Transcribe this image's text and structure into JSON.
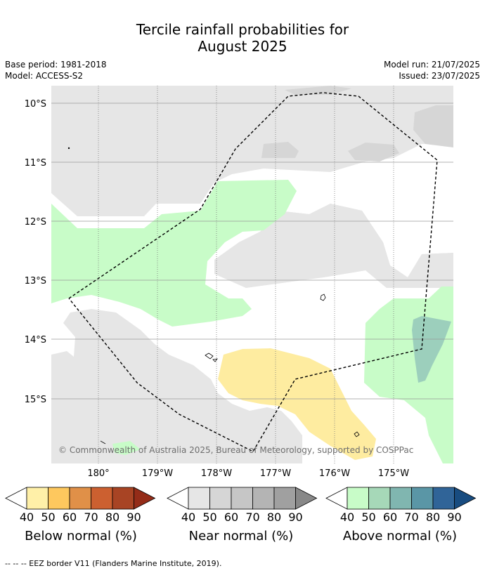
{
  "title_line1": "Tercile rainfall probabilities for",
  "title_line2": "August 2025",
  "meta": {
    "base_period": "Base period: 1981-2018",
    "model": "Model: ACCESS-S2",
    "model_run": "Model run: 21/07/2025",
    "issued": "Issued: 23/07/2025"
  },
  "map": {
    "lat_labels": [
      "10°S",
      "11°S",
      "12°S",
      "13°S",
      "14°S",
      "15°S"
    ],
    "lon_labels": [
      "180°",
      "179°W",
      "178°W",
      "177°W",
      "176°W",
      "175°W"
    ],
    "copyright": "© Commonwealth of Australia 2025, Bureau of Meteorology, supported by COSPPac",
    "colors": {
      "near_normal_40": "#e6e6e6",
      "near_normal_50": "#d6d6d6",
      "above_normal_40": "#c8fcc8",
      "above_normal_60": "#9ccfbc",
      "below_normal_40": "#feeca0"
    }
  },
  "colorbars": [
    {
      "label": "Below normal (%)",
      "ticks": [
        "40",
        "50",
        "60",
        "70",
        "80",
        "90"
      ],
      "colors": [
        "#fff0a8",
        "#fec85e",
        "#e09048",
        "#cc6030",
        "#a84424",
        "#942c18"
      ]
    },
    {
      "label": "Near normal (%)",
      "ticks": [
        "40",
        "50",
        "60",
        "70",
        "80",
        "90"
      ],
      "colors": [
        "#e6e6e6",
        "#d6d6d6",
        "#c6c6c6",
        "#b4b4b4",
        "#a0a0a0",
        "#888888"
      ]
    },
    {
      "label": "Above normal (%)",
      "ticks": [
        "40",
        "50",
        "60",
        "70",
        "80",
        "90"
      ],
      "colors": [
        "#c8fcc8",
        "#a6d8b8",
        "#80b6b0",
        "#5a96a6",
        "#306498",
        "#184c80"
      ]
    }
  ],
  "footer": "--  --  -- EEZ border V11 (Flanders Marine Institute, 2019)."
}
